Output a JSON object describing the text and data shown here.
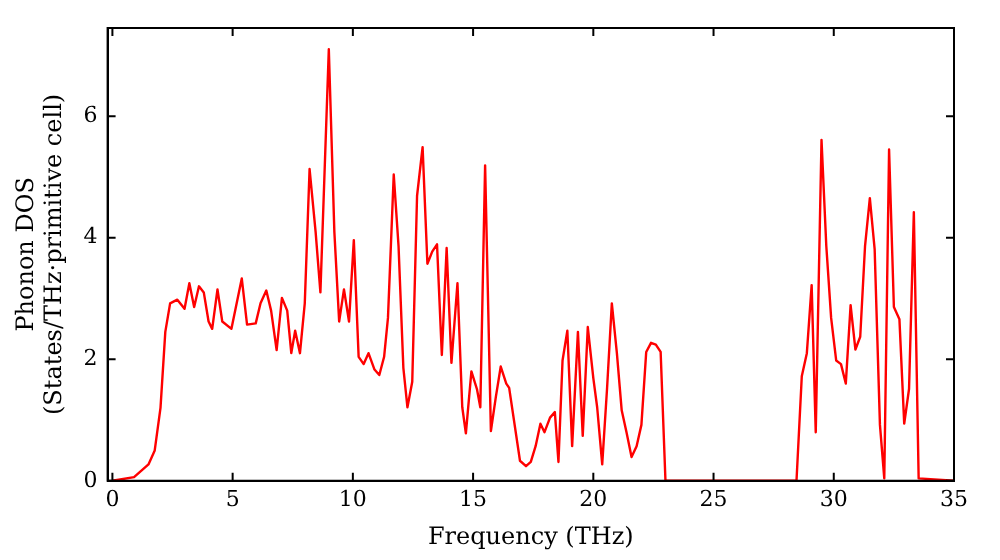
{
  "chart_data": {
    "type": "line",
    "xlabel": "Frequency (THz)",
    "ylabel": "Phonon DOS\n(States/THz·primitive cell)",
    "xlim": [
      -0.2,
      35
    ],
    "ylim": [
      0,
      7.45
    ],
    "xticks": [
      0,
      5,
      10,
      15,
      20,
      25,
      30,
      35
    ],
    "yticks": [
      0,
      2,
      4,
      6
    ],
    "grid": false,
    "legend": false,
    "marker": "none",
    "line_style": "solid",
    "series": [
      {
        "color": "#ff0000",
        "x": [
          0,
          0.9,
          1.5,
          1.76,
          2.0,
          2.2,
          2.4,
          2.7,
          3.0,
          3.2,
          3.4,
          3.6,
          3.8,
          4.0,
          4.15,
          4.37,
          4.57,
          4.95,
          5.38,
          5.6,
          5.96,
          6.16,
          6.4,
          6.6,
          6.83,
          7.05,
          7.27,
          7.44,
          7.6,
          7.8,
          8.0,
          8.2,
          8.45,
          8.65,
          9.0,
          9.23,
          9.43,
          9.63,
          9.84,
          10.04,
          10.24,
          10.45,
          10.65,
          10.9,
          11.1,
          11.3,
          11.46,
          11.7,
          11.9,
          12.1,
          12.27,
          12.47,
          12.67,
          12.9,
          13.1,
          13.3,
          13.5,
          13.7,
          13.9,
          14.1,
          14.35,
          14.55,
          14.7,
          14.93,
          15.16,
          15.3,
          15.5,
          15.74,
          15.95,
          16.15,
          16.38,
          16.5,
          16.95,
          17.2,
          17.4,
          17.6,
          17.8,
          17.97,
          18.2,
          18.4,
          18.55,
          18.72,
          18.92,
          19.12,
          19.36,
          19.56,
          19.77,
          20.0,
          20.16,
          20.37,
          20.57,
          20.77,
          20.98,
          21.18,
          21.38,
          21.59,
          21.8,
          22.0,
          22.2,
          22.4,
          22.6,
          22.8,
          23.0,
          28.45,
          28.67,
          28.88,
          29.08,
          29.25,
          29.49,
          29.69,
          29.89,
          30.1,
          30.3,
          30.5,
          30.7,
          30.9,
          31.1,
          31.3,
          31.5,
          31.7,
          31.92,
          32.1,
          32.3,
          32.5,
          32.73,
          32.93,
          33.13,
          33.33,
          33.53,
          35
        ],
        "values": [
          0,
          0.06,
          0.27,
          0.5,
          1.2,
          2.45,
          2.92,
          2.98,
          2.83,
          3.25,
          2.86,
          3.2,
          3.1,
          2.62,
          2.5,
          3.15,
          2.62,
          2.5,
          3.33,
          2.57,
          2.59,
          2.92,
          3.13,
          2.8,
          2.15,
          3.01,
          2.8,
          2.1,
          2.47,
          2.1,
          2.92,
          5.13,
          4.1,
          3.1,
          7.1,
          4.1,
          2.62,
          3.15,
          2.62,
          3.96,
          2.04,
          1.92,
          2.1,
          1.83,
          1.74,
          2.04,
          2.68,
          5.04,
          3.86,
          1.86,
          1.21,
          1.63,
          4.69,
          5.49,
          3.57,
          3.77,
          3.89,
          2.07,
          3.83,
          1.94,
          3.25,
          1.21,
          0.78,
          1.8,
          1.51,
          1.21,
          5.19,
          0.82,
          1.39,
          1.88,
          1.6,
          1.53,
          0.33,
          0.24,
          0.31,
          0.57,
          0.94,
          0.8,
          1.04,
          1.13,
          0.31,
          1.98,
          2.47,
          0.57,
          2.45,
          0.74,
          2.53,
          1.69,
          1.21,
          0.27,
          1.51,
          2.92,
          2.1,
          1.16,
          0.8,
          0.39,
          0.57,
          0.92,
          2.12,
          2.27,
          2.24,
          2.12,
          0,
          0,
          1.72,
          2.1,
          3.22,
          0.8,
          5.61,
          3.86,
          2.68,
          1.98,
          1.92,
          1.6,
          2.89,
          2.16,
          2.37,
          3.86,
          4.65,
          3.81,
          0.92,
          0.04,
          5.45,
          2.86,
          2.66,
          0.94,
          1.51,
          4.42,
          0.04,
          0
        ]
      }
    ]
  }
}
